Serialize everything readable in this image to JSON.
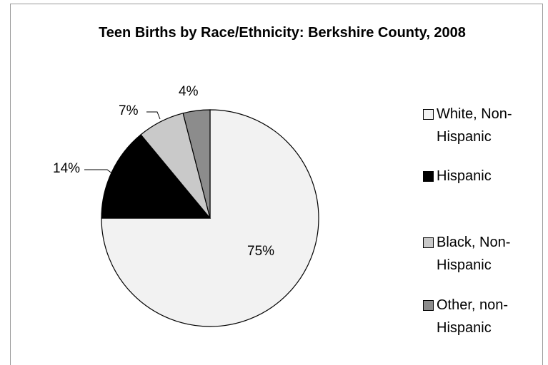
{
  "chart_data": {
    "type": "pie",
    "title": "Teen Births by Race/Ethnicity: Berkshire County, 2008",
    "categories": [
      "White, Non-Hispanic",
      "Hispanic",
      "Black, Non-Hispanic",
      "Other, non-Hispanic"
    ],
    "values": [
      75,
      14,
      7,
      4
    ],
    "value_labels": [
      "75%",
      "14%",
      "7%",
      "4%"
    ],
    "colors": [
      "#f2f2f2",
      "#000000",
      "#c9c9c9",
      "#8c8c8c"
    ]
  }
}
